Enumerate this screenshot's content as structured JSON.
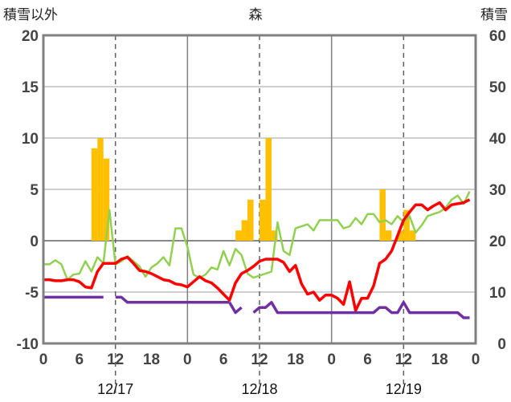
{
  "chart_data": {
    "type": "line",
    "title": "森",
    "y_left_label": "積雪以外",
    "y_right_label": "積雪",
    "y_left_range": [
      -10,
      20
    ],
    "y_left_ticks": [
      "20",
      "15",
      "10",
      "5",
      "0",
      "-5",
      "-10"
    ],
    "y_right_range": [
      0,
      60
    ],
    "y_right_ticks": [
      "60",
      "50",
      "40",
      "30",
      "20",
      "10",
      "0"
    ],
    "x_range_hours": [
      0,
      72
    ],
    "x_tick_labels": [
      "0",
      "6",
      "12",
      "18",
      "0",
      "6",
      "12",
      "18",
      "0",
      "6",
      "12",
      "18",
      "0"
    ],
    "date_labels": [
      "12/17",
      "12/18",
      "12/19"
    ],
    "day_boundaries_hours": [
      24,
      48
    ],
    "noon_hours": [
      12,
      36,
      60
    ],
    "series": [
      {
        "kind": "bar",
        "axis": "left",
        "color": "#ffc000",
        "x": [
          8.5,
          9.5,
          10.5,
          32.5,
          33.5,
          34.5,
          36.5,
          37.5,
          38.5,
          56.5,
          57.5,
          59.5,
          60.5,
          61.5
        ],
        "values": [
          9,
          10,
          8,
          1,
          2,
          4,
          4,
          10,
          1,
          5,
          1,
          1,
          3,
          1
        ]
      },
      {
        "kind": "line",
        "axis": "left",
        "color": "#92d050",
        "x": [
          0,
          1,
          2,
          3,
          4,
          5,
          6,
          7,
          8,
          9,
          10,
          11,
          12,
          13,
          14,
          15,
          16,
          17,
          18,
          19,
          20,
          21,
          22,
          23,
          24,
          25,
          26,
          27,
          28,
          29,
          30,
          31,
          32,
          33,
          34,
          35,
          36,
          37,
          38,
          39,
          40,
          41,
          42,
          43,
          44,
          45,
          46,
          47,
          48,
          49,
          50,
          51,
          52,
          53,
          54,
          55,
          56,
          57,
          58,
          59,
          60,
          61,
          62,
          63,
          64,
          65,
          66,
          67,
          68,
          69,
          70,
          71
        ],
        "values": [
          -2.3,
          -2.3,
          -1.9,
          -2.3,
          -3.8,
          -3.3,
          -3.2,
          -2.0,
          -3.0,
          -1.6,
          -2.2,
          3.0,
          -2.3,
          -2.0,
          -1.5,
          -2.0,
          -2.5,
          -3.5,
          -2.6,
          -2.2,
          -1.6,
          -2.4,
          1.2,
          1.2,
          -0.6,
          -3.3,
          -3.6,
          -3.3,
          -2.6,
          -2.8,
          -1.0,
          -2.4,
          -0.8,
          -1.4,
          -3.2,
          -3.6,
          -3.4,
          -3.2,
          -3.0,
          1.8,
          -1.0,
          -1.4,
          1.2,
          1.4,
          1.6,
          1.0,
          2.0,
          2.0,
          2.0,
          2.0,
          1.2,
          1.4,
          2.2,
          1.6,
          2.6,
          2.6,
          1.8,
          2.0,
          1.6,
          2.4,
          1.8,
          2.4,
          0.8,
          1.5,
          2.4,
          2.6,
          2.8,
          3.2,
          4.0,
          4.4,
          3.6,
          4.8
        ]
      },
      {
        "kind": "line",
        "axis": "left",
        "color": "#ff0000",
        "x": [
          0,
          1,
          2,
          3,
          4,
          5,
          6,
          7,
          8,
          9,
          10,
          11,
          12,
          13,
          14,
          15,
          16,
          17,
          18,
          19,
          20,
          21,
          22,
          23,
          24,
          25,
          26,
          27,
          28,
          29,
          30,
          31,
          32,
          33,
          34,
          35,
          36,
          37,
          38,
          39,
          40,
          41,
          42,
          43,
          44,
          45,
          46,
          47,
          48,
          49,
          50,
          51,
          52,
          53,
          54,
          55,
          56,
          57,
          58,
          59,
          60,
          61,
          62,
          63,
          64,
          65,
          66,
          67,
          68,
          69,
          70,
          71
        ],
        "values": [
          -3.8,
          -3.8,
          -3.9,
          -3.9,
          -3.8,
          -3.8,
          -4.0,
          -4.5,
          -4.6,
          -3.0,
          -2.2,
          -2.2,
          -2.2,
          -1.8,
          -1.6,
          -2.2,
          -2.9,
          -3.0,
          -3.2,
          -3.5,
          -3.8,
          -3.9,
          -4.2,
          -4.3,
          -4.5,
          -4.0,
          -3.5,
          -3.9,
          -4.1,
          -4.6,
          -5.2,
          -5.8,
          -4.1,
          -3.2,
          -2.9,
          -2.5,
          -2.0,
          -1.8,
          -1.8,
          -1.8,
          -2.1,
          -3.0,
          -2.4,
          -4.2,
          -5.2,
          -5.0,
          -5.8,
          -5.3,
          -5.3,
          -5.6,
          -6.2,
          -4.0,
          -6.8,
          -5.6,
          -5.6,
          -4.4,
          -2.2,
          -1.8,
          -1.0,
          0.5,
          2.0,
          2.8,
          3.5,
          3.5,
          3.0,
          3.4,
          3.7,
          3.0,
          3.5,
          3.6,
          3.7,
          4.0
        ]
      },
      {
        "kind": "line",
        "axis": "left",
        "color": "#7030a0",
        "segments": [
          {
            "x": [
              0,
              10
            ],
            "values": [
              -5.5,
              -5.5
            ]
          },
          {
            "x": [
              12,
              13,
              14,
              15,
              16,
              17,
              18,
              19,
              20,
              21,
              22,
              23,
              24,
              25,
              26,
              27,
              28,
              29,
              30,
              31
            ],
            "values": [
              -5.5,
              -5.5,
              -6.0,
              -6.0,
              -6.0,
              -6.0,
              -6.0,
              -6.0,
              -6.0,
              -6.0,
              -6.0,
              -6.0,
              -6.0,
              -6.0,
              -6.0,
              -6.0,
              -6.0,
              -6.0,
              -6.0,
              -6.0
            ]
          },
          {
            "x": [
              31,
              32,
              33
            ],
            "values": [
              -6.0,
              -7.0,
              -6.5
            ]
          },
          {
            "x": [
              35,
              36,
              37,
              38,
              39,
              40,
              41,
              42,
              43,
              44,
              45,
              46,
              47,
              48,
              49,
              50,
              51,
              52,
              53,
              54,
              55,
              56,
              57,
              58,
              59,
              60,
              61,
              62,
              63,
              64,
              65,
              66,
              67,
              68,
              69,
              70,
              71
            ],
            "values": [
              -7.0,
              -6.5,
              -6.5,
              -6.0,
              -7.0,
              -7.0,
              -7.0,
              -7.0,
              -7.0,
              -7.0,
              -7.0,
              -7.0,
              -7.0,
              -7.0,
              -7.0,
              -7.0,
              -7.0,
              -7.0,
              -7.0,
              -7.0,
              -7.0,
              -6.5,
              -6.5,
              -7.0,
              -7.0,
              -6.0,
              -7.0,
              -7.0,
              -7.0,
              -7.0,
              -7.0,
              -7.0,
              -7.0,
              -7.0,
              -7.0,
              -7.5,
              -7.5
            ]
          }
        ]
      }
    ]
  }
}
